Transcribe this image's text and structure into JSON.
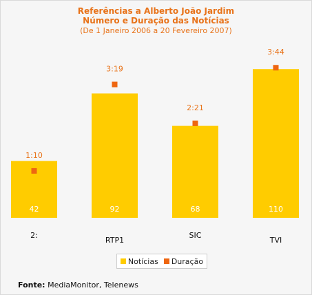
{
  "chart_data": {
    "type": "bar",
    "title_line1": "Referências a Alberto João Jardim",
    "title_line2": "Número e Duração das Notícias",
    "subtitle": "(De 1 Janeiro 2006 a 20 Fevereiro 2007)",
    "categories": [
      "2:",
      "RTP1",
      "SIC",
      "TVI"
    ],
    "series": [
      {
        "name": "Notícias",
        "type": "bar",
        "values": [
          42,
          92,
          68,
          110
        ],
        "color": "#ffcc00"
      },
      {
        "name": "Duração",
        "type": "marker",
        "values": [
          "1:10",
          "3:19",
          "2:21",
          "3:44"
        ],
        "color": "#ee6611"
      }
    ],
    "ylim": [
      0,
      130
    ],
    "legend_position": "bottom",
    "grid": false
  },
  "source": {
    "label": "Fonte:",
    "text": "MediaMonitor, Telenews"
  },
  "colors": {
    "title": "#e8731a",
    "bar": "#ffcc00",
    "marker": "#ee6611",
    "bar_label": "#ffffff"
  }
}
